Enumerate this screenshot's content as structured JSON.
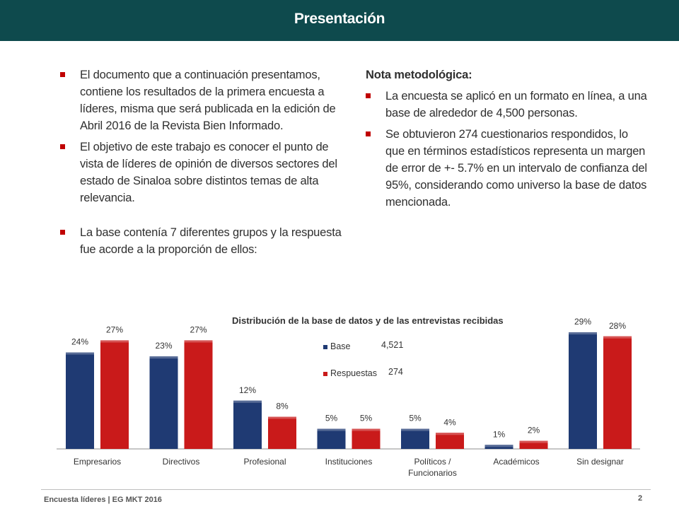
{
  "header": {
    "title": "Presentación"
  },
  "left_column": {
    "bullets": [
      "El documento que a continuación presentamos, contiene los resultados de la primera encuesta a líderes, misma que será publicada en la edición de Abril 2016 de la Revista Bien Informado.",
      "El objetivo de este trabajo es conocer el punto de vista de líderes de opinión de diversos sectores del estado de Sinaloa sobre distintos temas de alta relevancia.",
      "La base contenía 7 diferentes grupos y la respuesta fue acorde a la proporción de ellos:"
    ]
  },
  "right_column": {
    "title": "Nota metodológica:",
    "bullets": [
      "La encuesta se aplicó en un formato en línea, a una base de alrededor de 4,500 personas.",
      "Se obtuvieron 274 cuestionarios respondidos, lo que en términos estadísticos representa un margen de error de +- 5.7% en un intervalo de confianza del 95%, considerando como universo la base de datos mencionada."
    ]
  },
  "chart_data": {
    "type": "bar",
    "title": "Distribución de la base de datos y de las entrevistas recibidas",
    "categories": [
      "Empresarios",
      "Directivos",
      "Profesional",
      "Instituciones",
      "Políticos / Funcionarios",
      "Académicos",
      "Sin designar"
    ],
    "series": [
      {
        "name": "Base",
        "legend_value": "4,521",
        "color": "#1f3a73",
        "values": [
          24,
          23,
          12,
          5,
          5,
          1,
          29
        ]
      },
      {
        "name": "Respuestas",
        "legend_value": "274",
        "color": "#c91a1a",
        "values": [
          27,
          27,
          8,
          5,
          4,
          2,
          28
        ]
      }
    ],
    "value_suffix": "%",
    "ylim": [
      0,
      32
    ],
    "grid": false,
    "legend_position": "top-center"
  },
  "footer": {
    "left": "Encuesta líderes | EG MKT 2016",
    "page_number": "2"
  }
}
